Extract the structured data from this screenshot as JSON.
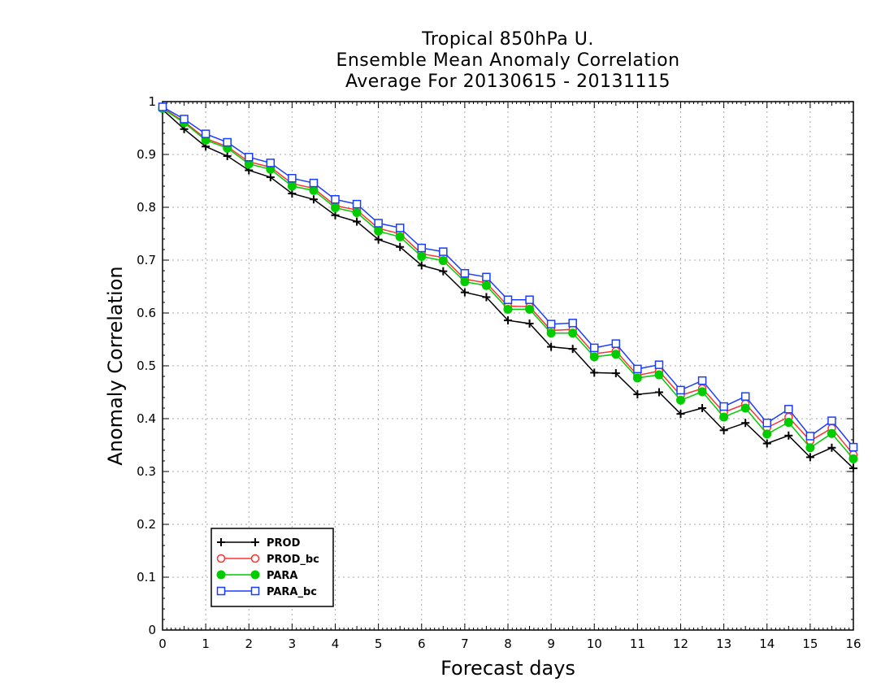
{
  "chart_data": {
    "type": "line",
    "title_lines": [
      "Tropical 850hPa U.",
      "Ensemble Mean Anomaly Correlation",
      "Average For 20130615 - 20131115"
    ],
    "xlabel": "Forecast days",
    "ylabel": "Anomaly Correlation",
    "xlim": [
      0,
      16
    ],
    "ylim": [
      0,
      1
    ],
    "x_ticks": [
      0,
      1,
      2,
      3,
      4,
      5,
      6,
      7,
      8,
      9,
      10,
      11,
      12,
      13,
      14,
      15,
      16
    ],
    "y_ticks": [
      0,
      0.1,
      0.2,
      0.3,
      0.4,
      0.5,
      0.6,
      0.7,
      0.8,
      0.9,
      1
    ],
    "y_tick_labels": [
      "0",
      "0.1",
      "0.2",
      "0.3",
      "0.4",
      "0.5",
      "0.6",
      "0.7",
      "0.8",
      "0.9",
      "1"
    ],
    "grid": true,
    "legend_position": "bottom-left",
    "x": [
      0,
      0.5,
      1,
      1.5,
      2,
      2.5,
      3,
      3.5,
      4,
      4.5,
      5,
      5.5,
      6,
      6.5,
      7,
      7.5,
      8,
      8.5,
      9,
      9.5,
      10,
      10.5,
      11,
      11.5,
      12,
      12.5,
      13,
      13.5,
      14,
      14.5,
      15,
      15.5,
      16
    ],
    "series": [
      {
        "name": "PROD",
        "color": "#000000",
        "marker": "plus",
        "values": [
          0.985,
          0.948,
          0.915,
          0.897,
          0.87,
          0.857,
          0.826,
          0.815,
          0.785,
          0.773,
          0.739,
          0.725,
          0.69,
          0.679,
          0.639,
          0.63,
          0.586,
          0.58,
          0.536,
          0.532,
          0.487,
          0.486,
          0.446,
          0.45,
          0.409,
          0.42,
          0.378,
          0.392,
          0.353,
          0.368,
          0.327,
          0.345,
          0.306
        ]
      },
      {
        "name": "PROD_bc",
        "color": "#ff3030",
        "marker": "open-circle",
        "values": [
          0.988,
          0.962,
          0.93,
          0.915,
          0.886,
          0.876,
          0.845,
          0.836,
          0.803,
          0.795,
          0.76,
          0.75,
          0.712,
          0.705,
          0.664,
          0.657,
          0.613,
          0.612,
          0.567,
          0.569,
          0.523,
          0.528,
          0.482,
          0.49,
          0.444,
          0.457,
          0.412,
          0.428,
          0.383,
          0.403,
          0.358,
          0.382,
          0.332
        ]
      },
      {
        "name": "PARA",
        "color": "#00cc00",
        "marker": "filled-circle",
        "values": [
          0.987,
          0.96,
          0.927,
          0.912,
          0.882,
          0.872,
          0.84,
          0.832,
          0.799,
          0.79,
          0.755,
          0.744,
          0.707,
          0.699,
          0.659,
          0.652,
          0.607,
          0.607,
          0.562,
          0.562,
          0.517,
          0.522,
          0.477,
          0.483,
          0.435,
          0.451,
          0.403,
          0.42,
          0.371,
          0.393,
          0.345,
          0.372,
          0.324
        ]
      },
      {
        "name": "PARA_bc",
        "color": "#1a3cff",
        "marker": "open-square",
        "values": [
          0.99,
          0.967,
          0.939,
          0.923,
          0.895,
          0.884,
          0.855,
          0.846,
          0.815,
          0.806,
          0.77,
          0.761,
          0.723,
          0.716,
          0.675,
          0.668,
          0.625,
          0.625,
          0.579,
          0.581,
          0.534,
          0.542,
          0.494,
          0.502,
          0.454,
          0.472,
          0.423,
          0.442,
          0.392,
          0.418,
          0.367,
          0.396,
          0.346
        ]
      }
    ]
  }
}
